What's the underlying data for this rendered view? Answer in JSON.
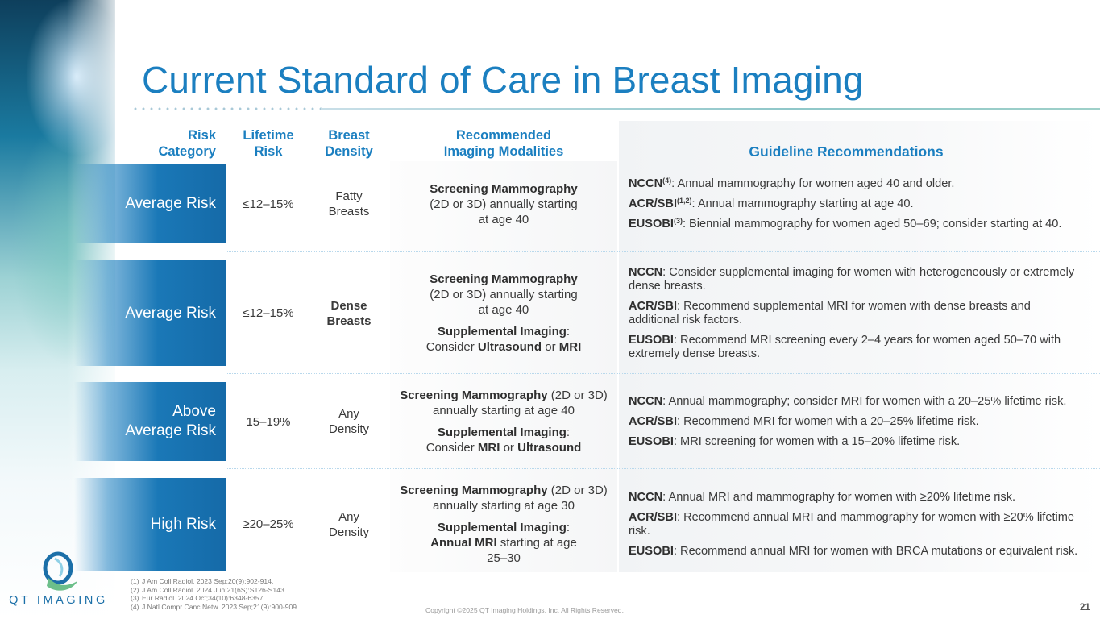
{
  "title": "Current Standard of Care in Breast Imaging",
  "headers": {
    "risk_category": [
      "Risk",
      "Category"
    ],
    "lifetime_risk": [
      "Lifetime",
      "Risk"
    ],
    "breast_density": [
      "Breast",
      "Density"
    ],
    "modalities": [
      "Recommended",
      "Imaging Modalities"
    ],
    "guidelines": "Guideline Recommendations"
  },
  "rows": [
    {
      "risk": [
        "Average Risk"
      ],
      "lifetime": "≤12–15%",
      "density": [
        "Fatty",
        "Breasts"
      ],
      "modal_1_bold": "Screening Mammography",
      "modal_1_line2": "(2D or 3D) annually starting",
      "modal_1_line3": "at age 40",
      "g1_org": "NCCN",
      "g1_sup": "(4)",
      "g1_text": ": Annual mammography for women aged 40 and older.",
      "g2_org": "ACR/SBI",
      "g2_sup": "(1,2)",
      "g2_text": ": Annual mammography starting at age 40.",
      "g3_org": "EUSOBI",
      "g3_sup": "(3)",
      "g3_text": ": Biennial mammography for women aged 50–69; consider starting at 40."
    },
    {
      "risk": [
        "Average Risk"
      ],
      "lifetime": "≤12–15%",
      "density": [
        "Dense",
        "Breasts"
      ],
      "modal_1_bold": "Screening Mammography",
      "modal_1_line2": "(2D or 3D) annually starting",
      "modal_1_line3": "at age 40",
      "modal_2_bold": "Supplemental Imaging",
      "modal_2_colon": ":",
      "modal_2_pre": "Consider ",
      "modal_2_b1": "Ultrasound",
      "modal_2_mid": " or ",
      "modal_2_b2": "MRI",
      "g1_org": "NCCN",
      "g1_text": ": Consider supplemental imaging for women with heterogeneously or extremely dense breasts.",
      "g2_org": "ACR/SBI",
      "g2_text": ": Recommend supplemental MRI for women with dense breasts and additional risk factors.",
      "g3_org": "EUSOBI",
      "g3_text": ": Recommend MRI screening every 2–4 years for women aged 50–70 with extremely dense breasts."
    },
    {
      "risk": [
        "Above",
        "Average Risk"
      ],
      "lifetime": "15–19%",
      "density": [
        "Any",
        "Density"
      ],
      "modal_1_bold": "Screening Mammography",
      "modal_1_rest": " (2D or 3D) annually starting at age 40",
      "modal_2_bold": "Supplemental Imaging",
      "modal_2_colon": ":",
      "modal_2_pre": "Consider ",
      "modal_2_b1": "MRI",
      "modal_2_mid": " or ",
      "modal_2_b2": "Ultrasound",
      "g1_org": "NCCN",
      "g1_text": ": Annual mammography; consider MRI for women with a 20–25% lifetime risk.",
      "g2_org": "ACR/SBI",
      "g2_text": ": Recommend MRI for women with a 20–25% lifetime risk.",
      "g3_org": "EUSOBI",
      "g3_text": ": MRI screening for women with a 15–20% lifetime risk."
    },
    {
      "risk": [
        "High Risk"
      ],
      "lifetime": "≥20–25%",
      "density": [
        "Any",
        "Density"
      ],
      "modal_1_bold": "Screening Mammography",
      "modal_1_rest": " (2D or 3D) annually starting at age 30",
      "modal_2_bold": "Supplemental Imaging",
      "modal_2_colon": ":",
      "modal_2_b1": "Annual MRI",
      "modal_2_post": " starting at age 25–30",
      "g1_org": "NCCN",
      "g1_text": ": Annual MRI and mammography for women with ≥20% lifetime risk.",
      "g2_org": "ACR/SBI",
      "g2_text": ": Recommend annual MRI and mammography for women with ≥20% lifetime risk.",
      "g3_org": "EUSOBI",
      "g3_text": ": Recommend annual MRI for women with BRCA mutations or equivalent risk."
    }
  ],
  "references": [
    {
      "num": "(1)",
      "text": "J Am Coll Radiol. 2023 Sep;20(9):902-914."
    },
    {
      "num": "(2)",
      "text": "J Am Coll Radiol. 2024 Jun;21(6S):S126-S143"
    },
    {
      "num": "(3)",
      "text": "Eur Radiol. 2024 Oct;34(10):6348-6357"
    },
    {
      "num": "(4)",
      "text": "J Natl Compr Canc Netw. 2023 Sep;21(9):900-909"
    }
  ],
  "copyright": "Copyright ©2025 QT Imaging Holdings, Inc. All Rights Reserved.",
  "page_number": "21",
  "logo_text": "QT IMAGING",
  "colors": {
    "accent_blue": "#1b7fc0",
    "risk_band": "#1a78b7",
    "logo_green": "#6cbf8a"
  }
}
